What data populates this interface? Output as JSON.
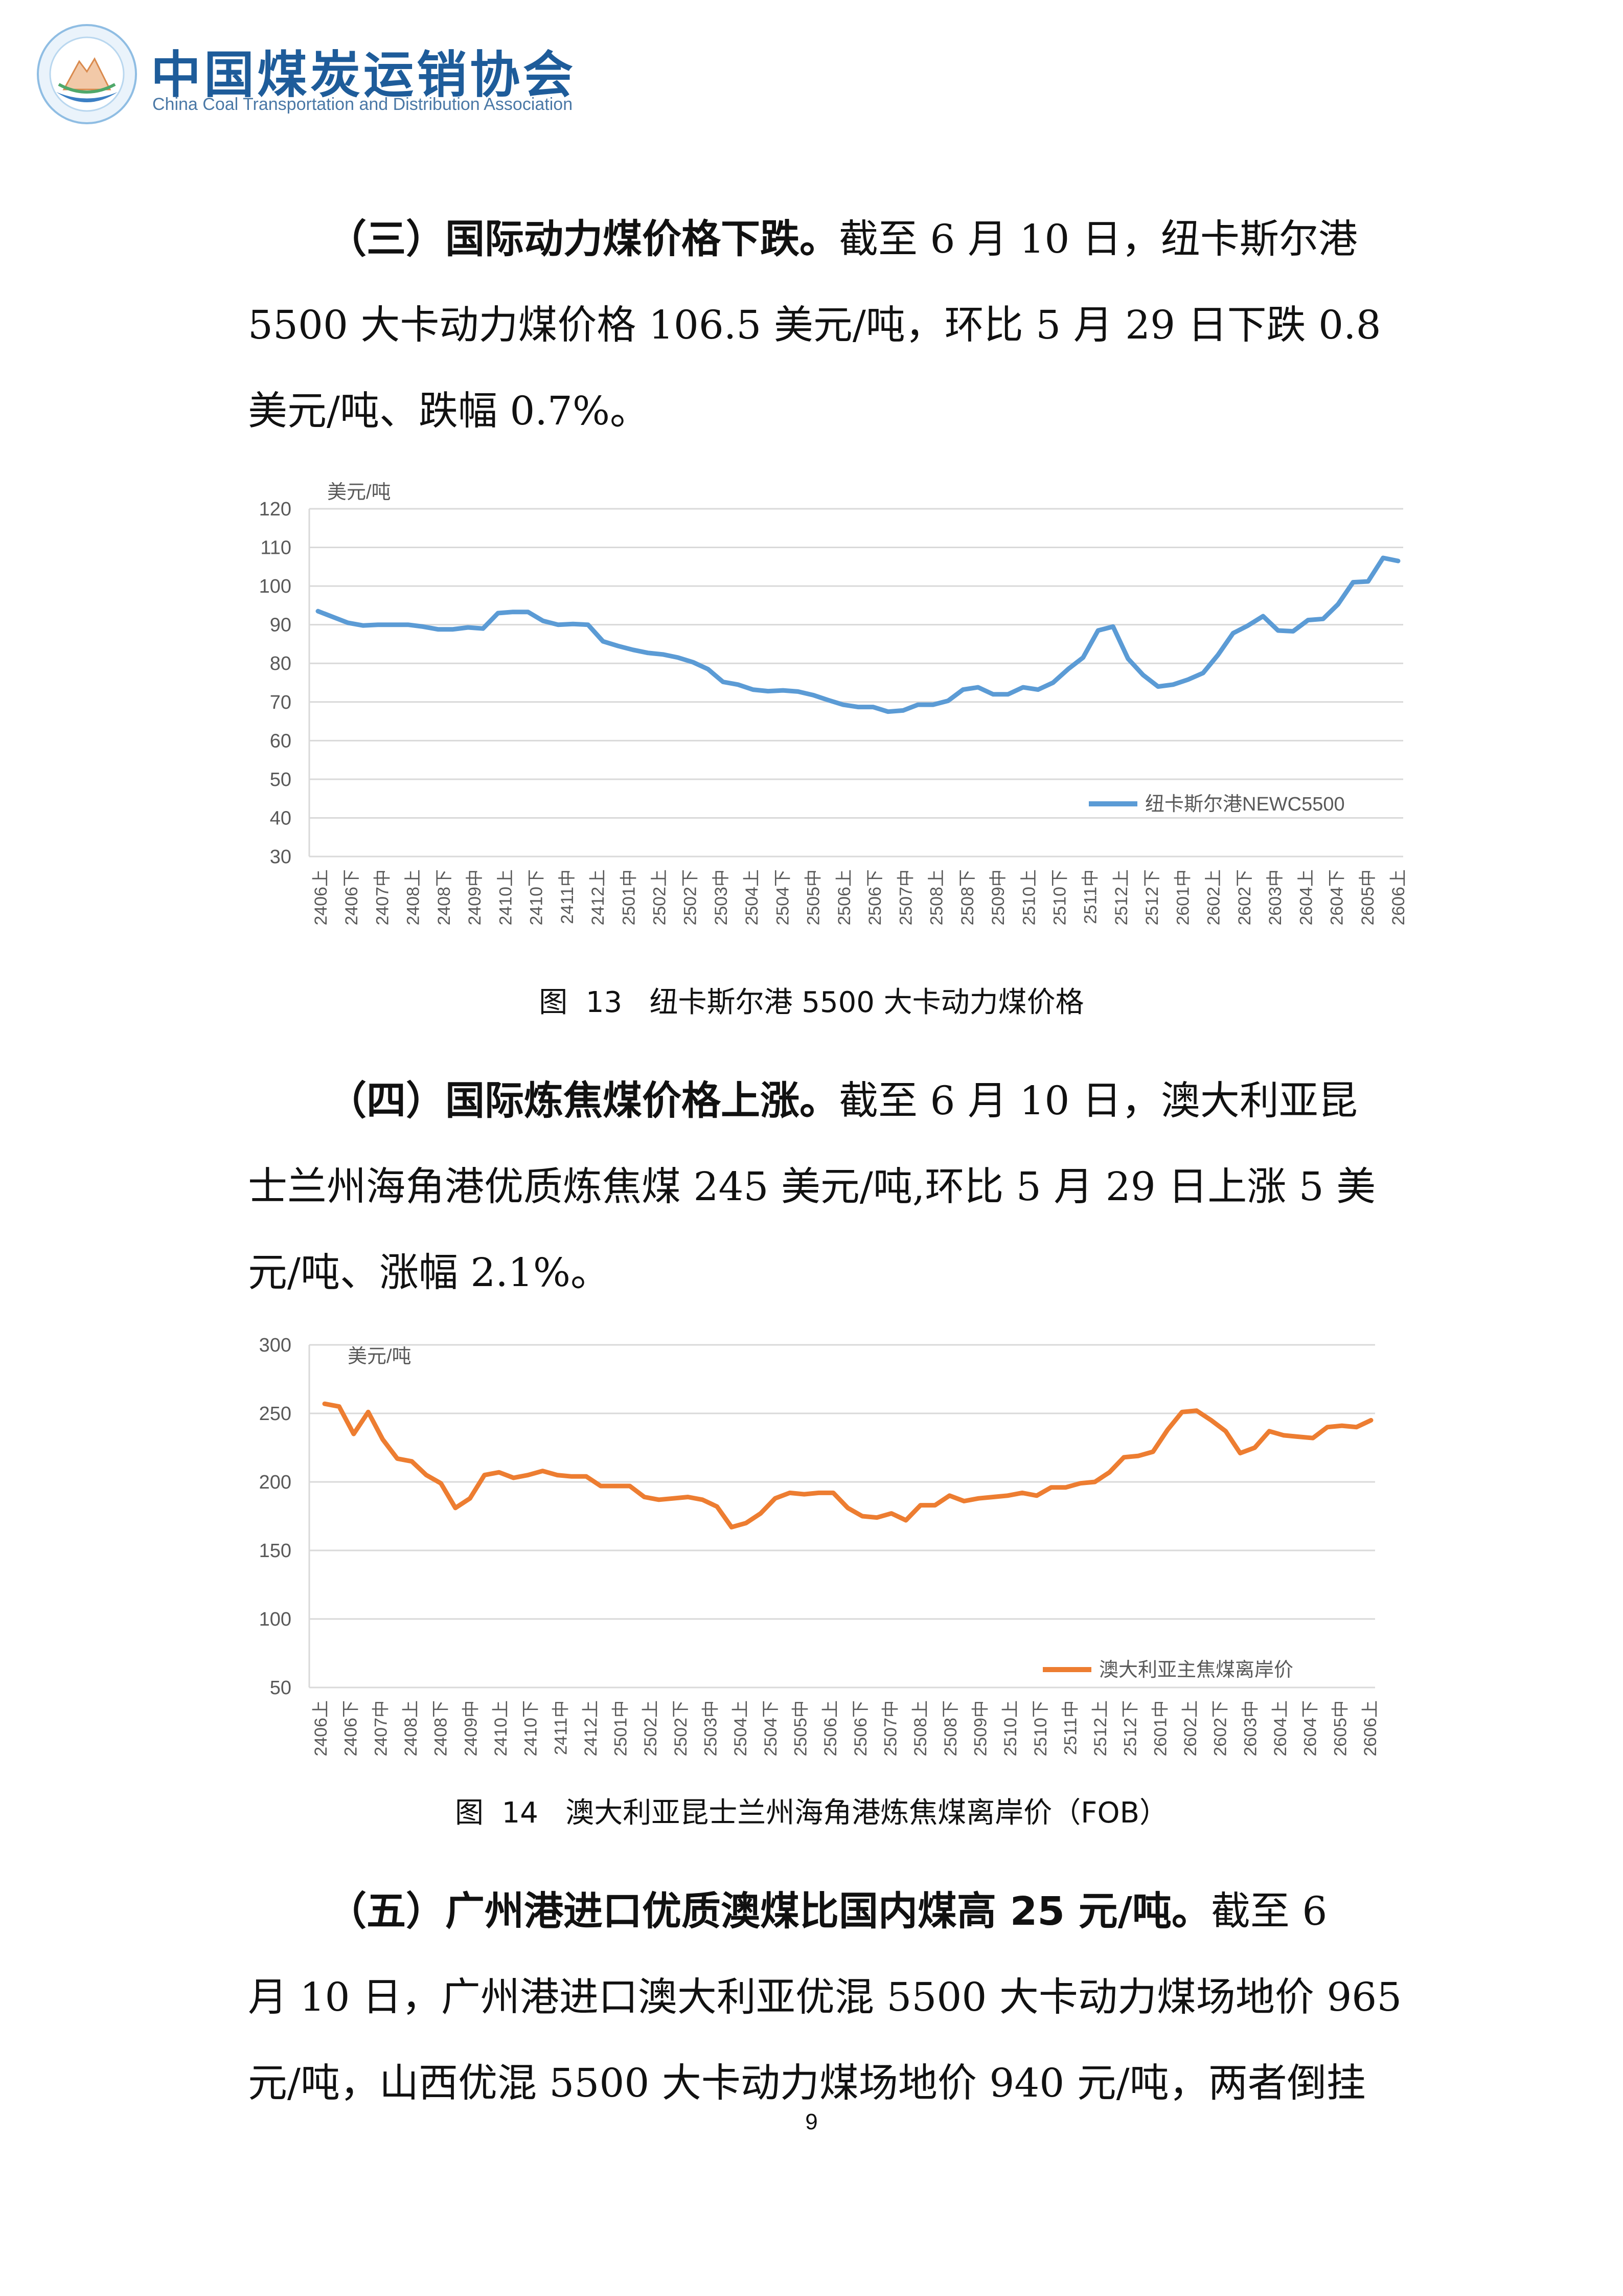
{
  "header": {
    "org_cn": "中国煤炭运销协会",
    "org_en": "China Coal Transportation and Distribution Association",
    "logo_icon": "association-logo-icon"
  },
  "section3": {
    "lead": "（三）国际动力煤价格下跌。",
    "lines": [
      "截至 6 月 10 日，纽卡斯尔港",
      "5500 大卡动力煤价格 106.5 美元/吨，环比 5 月 29 日下跌 0.8",
      "美元/吨、跌幅 0.7%。"
    ]
  },
  "figure13": {
    "caption": "图  13   纽卡斯尔港 5500 大卡动力煤价格",
    "chart_data": {
      "type": "line",
      "ylabel": "美元/吨",
      "ylim": [
        30,
        120
      ],
      "yticks": [
        30,
        40,
        50,
        60,
        70,
        80,
        90,
        100,
        110,
        120
      ],
      "grid": true,
      "legend_position": "bottom-right",
      "color": "#5b9bd5",
      "x_tick_labels": [
        "2406上",
        "2406下",
        "2407中",
        "2408上",
        "2408下",
        "2409中",
        "2410上",
        "2410下",
        "2411中",
        "2412上",
        "2501中",
        "2502上",
        "2502下",
        "2503中",
        "2504上",
        "2504下",
        "2505中",
        "2506上",
        "2506下",
        "2507中",
        "2508上",
        "2508下",
        "2509中",
        "2510上",
        "2510下",
        "2511中",
        "2512上",
        "2512下",
        "2601中",
        "2602上",
        "2602下",
        "2603中",
        "2604上",
        "2604下",
        "2605中",
        "2606上"
      ],
      "series": [
        {
          "name": "纽卡斯尔港NEWC5500",
          "values": [
            93.5,
            92,
            90.5,
            89.8,
            90,
            90,
            90,
            89.5,
            88.8,
            88.8,
            89.3,
            89,
            93,
            93.3,
            93.3,
            91,
            90,
            90.2,
            90,
            85.7,
            84.5,
            83.5,
            82.7,
            82.3,
            81.5,
            80.3,
            78.5,
            75.2,
            74.5,
            73.2,
            72.8,
            73,
            72.7,
            71.8,
            70.5,
            69.3,
            68.7,
            68.7,
            67.5,
            67.8,
            69.3,
            69.3,
            70.3,
            73.2,
            73.8,
            72,
            72,
            73.8,
            73.2,
            75,
            78.5,
            81.5,
            88.5,
            89.5,
            81.2,
            77,
            74,
            74.5,
            75.8,
            77.5,
            82.2,
            87.8,
            89.8,
            92.2,
            88.5,
            88.3,
            91.2,
            91.5,
            95.3,
            101,
            101.2,
            107.3,
            106.5
          ]
        }
      ]
    }
  },
  "section4": {
    "lead": "（四）国际炼焦煤价格上涨。",
    "lines": [
      "截至 6 月 10 日，澳大利亚昆",
      "士兰州海角港优质炼焦煤 245 美元/吨,环比 5 月 29 日上涨 5 美",
      "元/吨、涨幅 2.1%。"
    ]
  },
  "figure14": {
    "caption": "图  14   澳大利亚昆士兰州海角港炼焦煤离岸价（FOB）",
    "chart_data": {
      "type": "line",
      "ylabel": "美元/吨",
      "ylim": [
        50,
        300
      ],
      "yticks": [
        50,
        100,
        150,
        200,
        250,
        300
      ],
      "grid": true,
      "legend_position": "bottom-right",
      "color": "#ed7d31",
      "x_tick_labels": [
        "2406上",
        "2406下",
        "2407中",
        "2408上",
        "2408下",
        "2409中",
        "2410上",
        "2410下",
        "2411中",
        "2412上",
        "2501中",
        "2502上",
        "2502下",
        "2503中",
        "2504上",
        "2504下",
        "2505中",
        "2506上",
        "2506下",
        "2507中",
        "2508上",
        "2508下",
        "2509中",
        "2510上",
        "2510下",
        "2511中",
        "2512上",
        "2512下",
        "2601中",
        "2602上",
        "2602下",
        "2603中",
        "2604上",
        "2604下",
        "2605中",
        "2606上"
      ],
      "series": [
        {
          "name": "澳大利亚主焦煤离岸价",
          "values": [
            257,
            255,
            235,
            251,
            231,
            217,
            215,
            205,
            199,
            181,
            188,
            205,
            207,
            203,
            205,
            208,
            205,
            204,
            204,
            197,
            197,
            197,
            189,
            187,
            188,
            189,
            187,
            182,
            167,
            170,
            177,
            188,
            192,
            191,
            192,
            192,
            181,
            175,
            174,
            177,
            172,
            183,
            183,
            190,
            186,
            188,
            189,
            190,
            192,
            190,
            196,
            196,
            199,
            200,
            207,
            218,
            219,
            222,
            238,
            251,
            252,
            245,
            237,
            221,
            225,
            237,
            234,
            233,
            232,
            240,
            241,
            240,
            245
          ]
        }
      ]
    }
  },
  "section5": {
    "lead": "（五）广州港进口优质澳煤比国内煤高 25 元/吨。",
    "lines": [
      "截至 6",
      "月 10 日，广州港进口澳大利亚优混 5500 大卡动力煤场地价 965",
      "元/吨，山西优混 5500 大卡动力煤场地价 940 元/吨，两者倒挂"
    ]
  },
  "page_number": "9"
}
